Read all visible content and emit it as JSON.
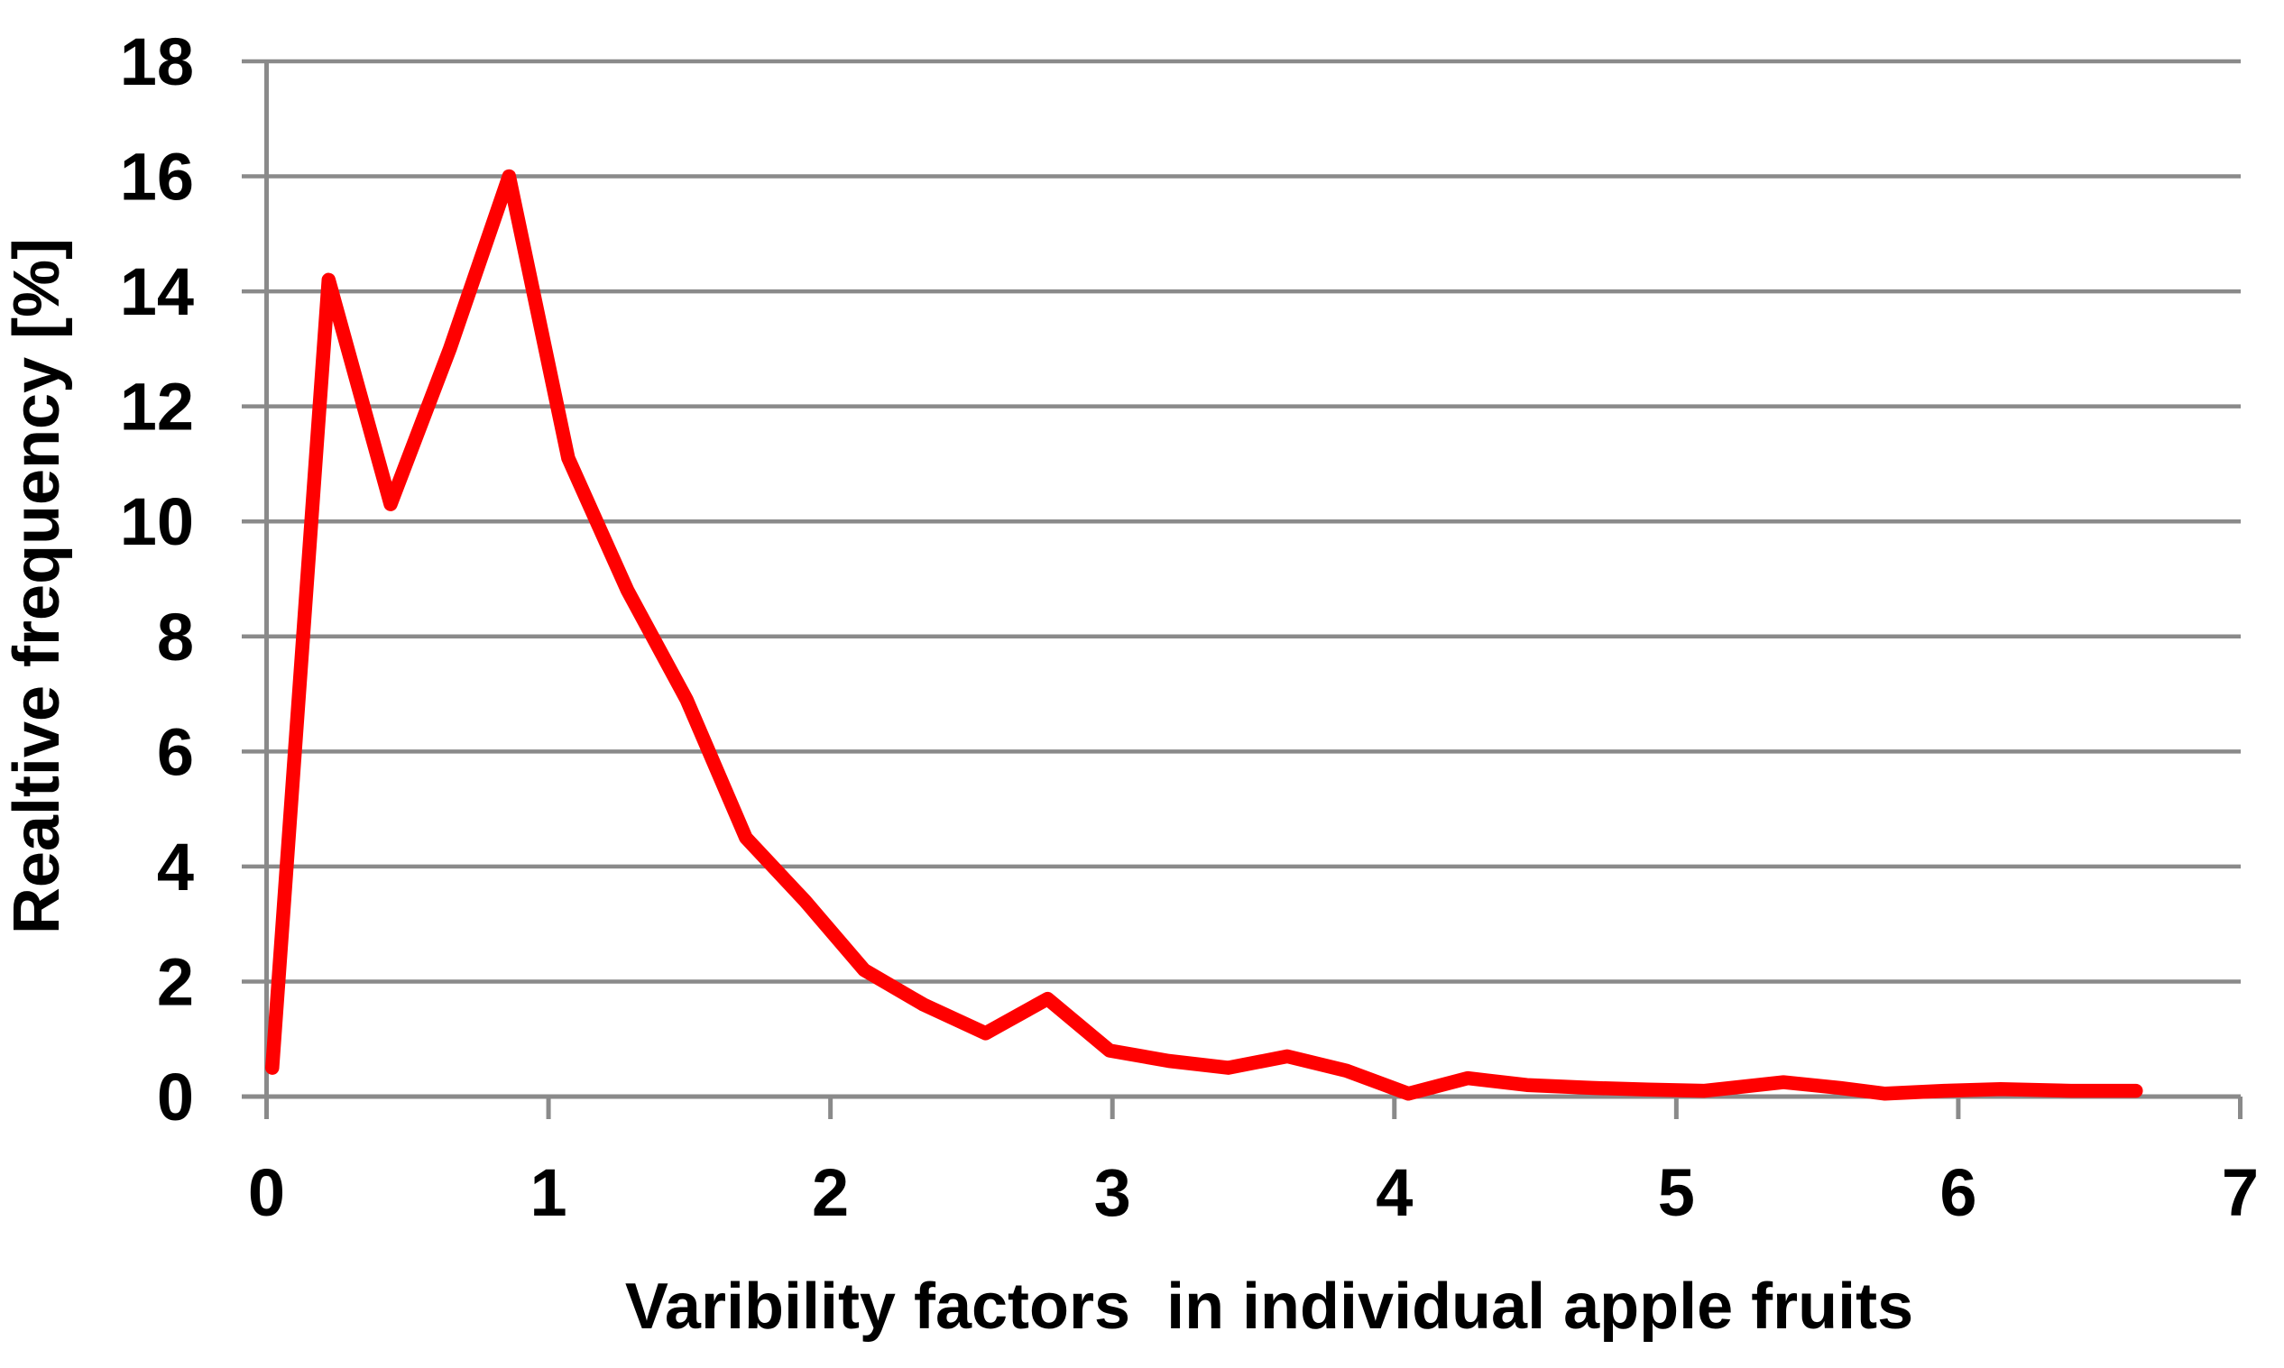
{
  "chart_data": {
    "type": "line",
    "title": "",
    "xlabel": "Varibility factors  in individual apple fruits",
    "ylabel": "Realtive frequency [%]",
    "xlim": [
      0,
      7
    ],
    "ylim": [
      0,
      18
    ],
    "x_ticks": [
      0,
      1,
      2,
      3,
      4,
      5,
      6,
      7
    ],
    "y_ticks": [
      0,
      2,
      4,
      6,
      8,
      10,
      12,
      14,
      16,
      18
    ],
    "grid": "horizontal",
    "legend": "none",
    "line_color": "#ff0000",
    "series": [
      {
        "name": "relative frequency",
        "points": [
          [
            0.02,
            0.5
          ],
          [
            0.22,
            14.2
          ],
          [
            0.44,
            10.3
          ],
          [
            0.65,
            13.0
          ],
          [
            0.86,
            16.0
          ],
          [
            1.07,
            11.1
          ],
          [
            1.28,
            8.8
          ],
          [
            1.49,
            6.9
          ],
          [
            1.7,
            4.5
          ],
          [
            1.91,
            3.4
          ],
          [
            2.12,
            2.2
          ],
          [
            2.33,
            1.6
          ],
          [
            2.55,
            1.1
          ],
          [
            2.77,
            1.7
          ],
          [
            2.99,
            0.8
          ],
          [
            3.2,
            0.62
          ],
          [
            3.41,
            0.5
          ],
          [
            3.62,
            0.7
          ],
          [
            3.83,
            0.45
          ],
          [
            4.05,
            0.05
          ],
          [
            4.26,
            0.32
          ],
          [
            4.47,
            0.2
          ],
          [
            4.7,
            0.15
          ],
          [
            4.9,
            0.12
          ],
          [
            5.1,
            0.1
          ],
          [
            5.38,
            0.25
          ],
          [
            5.58,
            0.15
          ],
          [
            5.74,
            0.05
          ],
          [
            5.95,
            0.1
          ],
          [
            6.15,
            0.13
          ],
          [
            6.4,
            0.1
          ],
          [
            6.63,
            0.1
          ]
        ]
      }
    ]
  },
  "colors": {
    "background": "#ffffff",
    "grid": "#8a8a8a",
    "axis": "#8a8a8a",
    "text": "#000000",
    "line": "#ff0000"
  }
}
